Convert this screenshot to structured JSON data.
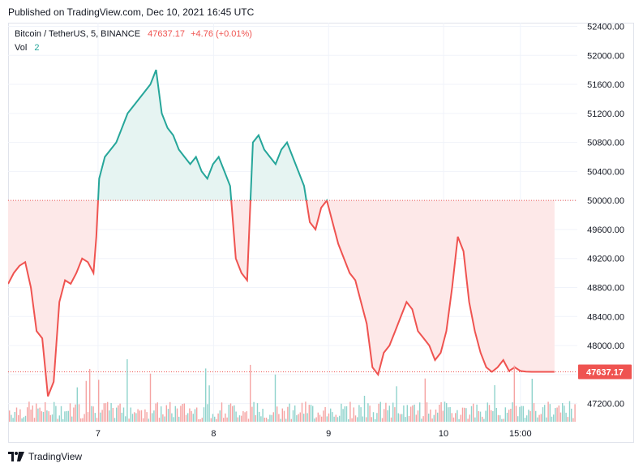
{
  "header": {
    "published": "Published on TradingView.com, Dec 10, 2021 16:45 UTC"
  },
  "legend": {
    "symbol": "Bitcoin / TetherUS, 5, BINANCE",
    "price": "47637.17",
    "change": "+4.76 (+0.01%)",
    "vol_label": "Vol",
    "vol_value": "2"
  },
  "footer": {
    "brand": "TradingView"
  },
  "colors": {
    "up": "#26a69a",
    "down": "#ef5350",
    "up_fill": "#e6f4f2",
    "down_fill": "#fde8e8",
    "grid": "#f0f3fa"
  },
  "chart_data": {
    "type": "area",
    "symbol": "BTCUSDT",
    "interval": "5",
    "baseline": 50000,
    "last_price": 47637.17,
    "last_price_label": "47637.17",
    "ylim": [
      46950,
      52450
    ],
    "y_ticks": [
      47200,
      47600,
      48000,
      48400,
      48800,
      49200,
      49600,
      50000,
      50400,
      50800,
      51200,
      51600,
      52000,
      52400
    ],
    "y_tick_labels": [
      "47200.00",
      "47600.00",
      "48000.00",
      "48400.00",
      "48800.00",
      "49200.00",
      "49600.00",
      "50000.00",
      "50400.00",
      "50800.00",
      "51200.00",
      "51600.00",
      "52000.00",
      "52400.00"
    ],
    "x_labels": [
      {
        "label": "7",
        "t": 0.158
      },
      {
        "label": "8",
        "t": 0.361
      },
      {
        "label": "9",
        "t": 0.563
      },
      {
        "label": "10",
        "t": 0.765
      },
      {
        "label": "15:00",
        "t": 0.9
      }
    ],
    "series": [
      {
        "values_t": [
          0,
          0.01,
          0.02,
          0.03,
          0.04,
          0.05,
          0.06,
          0.07,
          0.08,
          0.09,
          0.1,
          0.11,
          0.12,
          0.13,
          0.14,
          0.15,
          0.155,
          0.16,
          0.17,
          0.18,
          0.19,
          0.2,
          0.21,
          0.22,
          0.23,
          0.24,
          0.25,
          0.26,
          0.27,
          0.28,
          0.29,
          0.3,
          0.31,
          0.32,
          0.33,
          0.34,
          0.35,
          0.36,
          0.37,
          0.38,
          0.39,
          0.4,
          0.41,
          0.42,
          0.43,
          0.44,
          0.45,
          0.46,
          0.47,
          0.48,
          0.49,
          0.5,
          0.51,
          0.52,
          0.53,
          0.54,
          0.55,
          0.56,
          0.57,
          0.58,
          0.59,
          0.6,
          0.61,
          0.62,
          0.63,
          0.64,
          0.65,
          0.66,
          0.67,
          0.68,
          0.69,
          0.7,
          0.71,
          0.72,
          0.73,
          0.74,
          0.75,
          0.76,
          0.77,
          0.78,
          0.79,
          0.8,
          0.81,
          0.82,
          0.83,
          0.84,
          0.85,
          0.86,
          0.87,
          0.88,
          0.89,
          0.9,
          0.91,
          0.92,
          0.93,
          0.94,
          0.95,
          0.96
        ],
        "values": [
          48850,
          49000,
          49100,
          49150,
          48800,
          48200,
          48100,
          47300,
          47500,
          48600,
          48900,
          48850,
          49000,
          49200,
          49150,
          49000,
          49500,
          50300,
          50600,
          50700,
          50800,
          51000,
          51200,
          51300,
          51400,
          51500,
          51600,
          51800,
          51200,
          51000,
          50900,
          50700,
          50600,
          50500,
          50600,
          50400,
          50300,
          50500,
          50600,
          50400,
          50200,
          49200,
          49000,
          48900,
          50800,
          50900,
          50700,
          50600,
          50500,
          50700,
          50800,
          50600,
          50400,
          50200,
          49700,
          49600,
          49900,
          50000,
          49700,
          49400,
          49200,
          49000,
          48900,
          48600,
          48300,
          47700,
          47600,
          47900,
          48000,
          48200,
          48400,
          48600,
          48500,
          48200,
          48100,
          48000,
          47800,
          47900,
          48200,
          48800,
          49500,
          49300,
          48600,
          48200,
          47900,
          47700,
          47637,
          47700,
          47800,
          47650,
          47700,
          47650,
          47640,
          47637,
          47637,
          47637,
          47637,
          47637
        ]
      }
    ],
    "volume": {
      "name": "Vol",
      "value": 2
    }
  }
}
